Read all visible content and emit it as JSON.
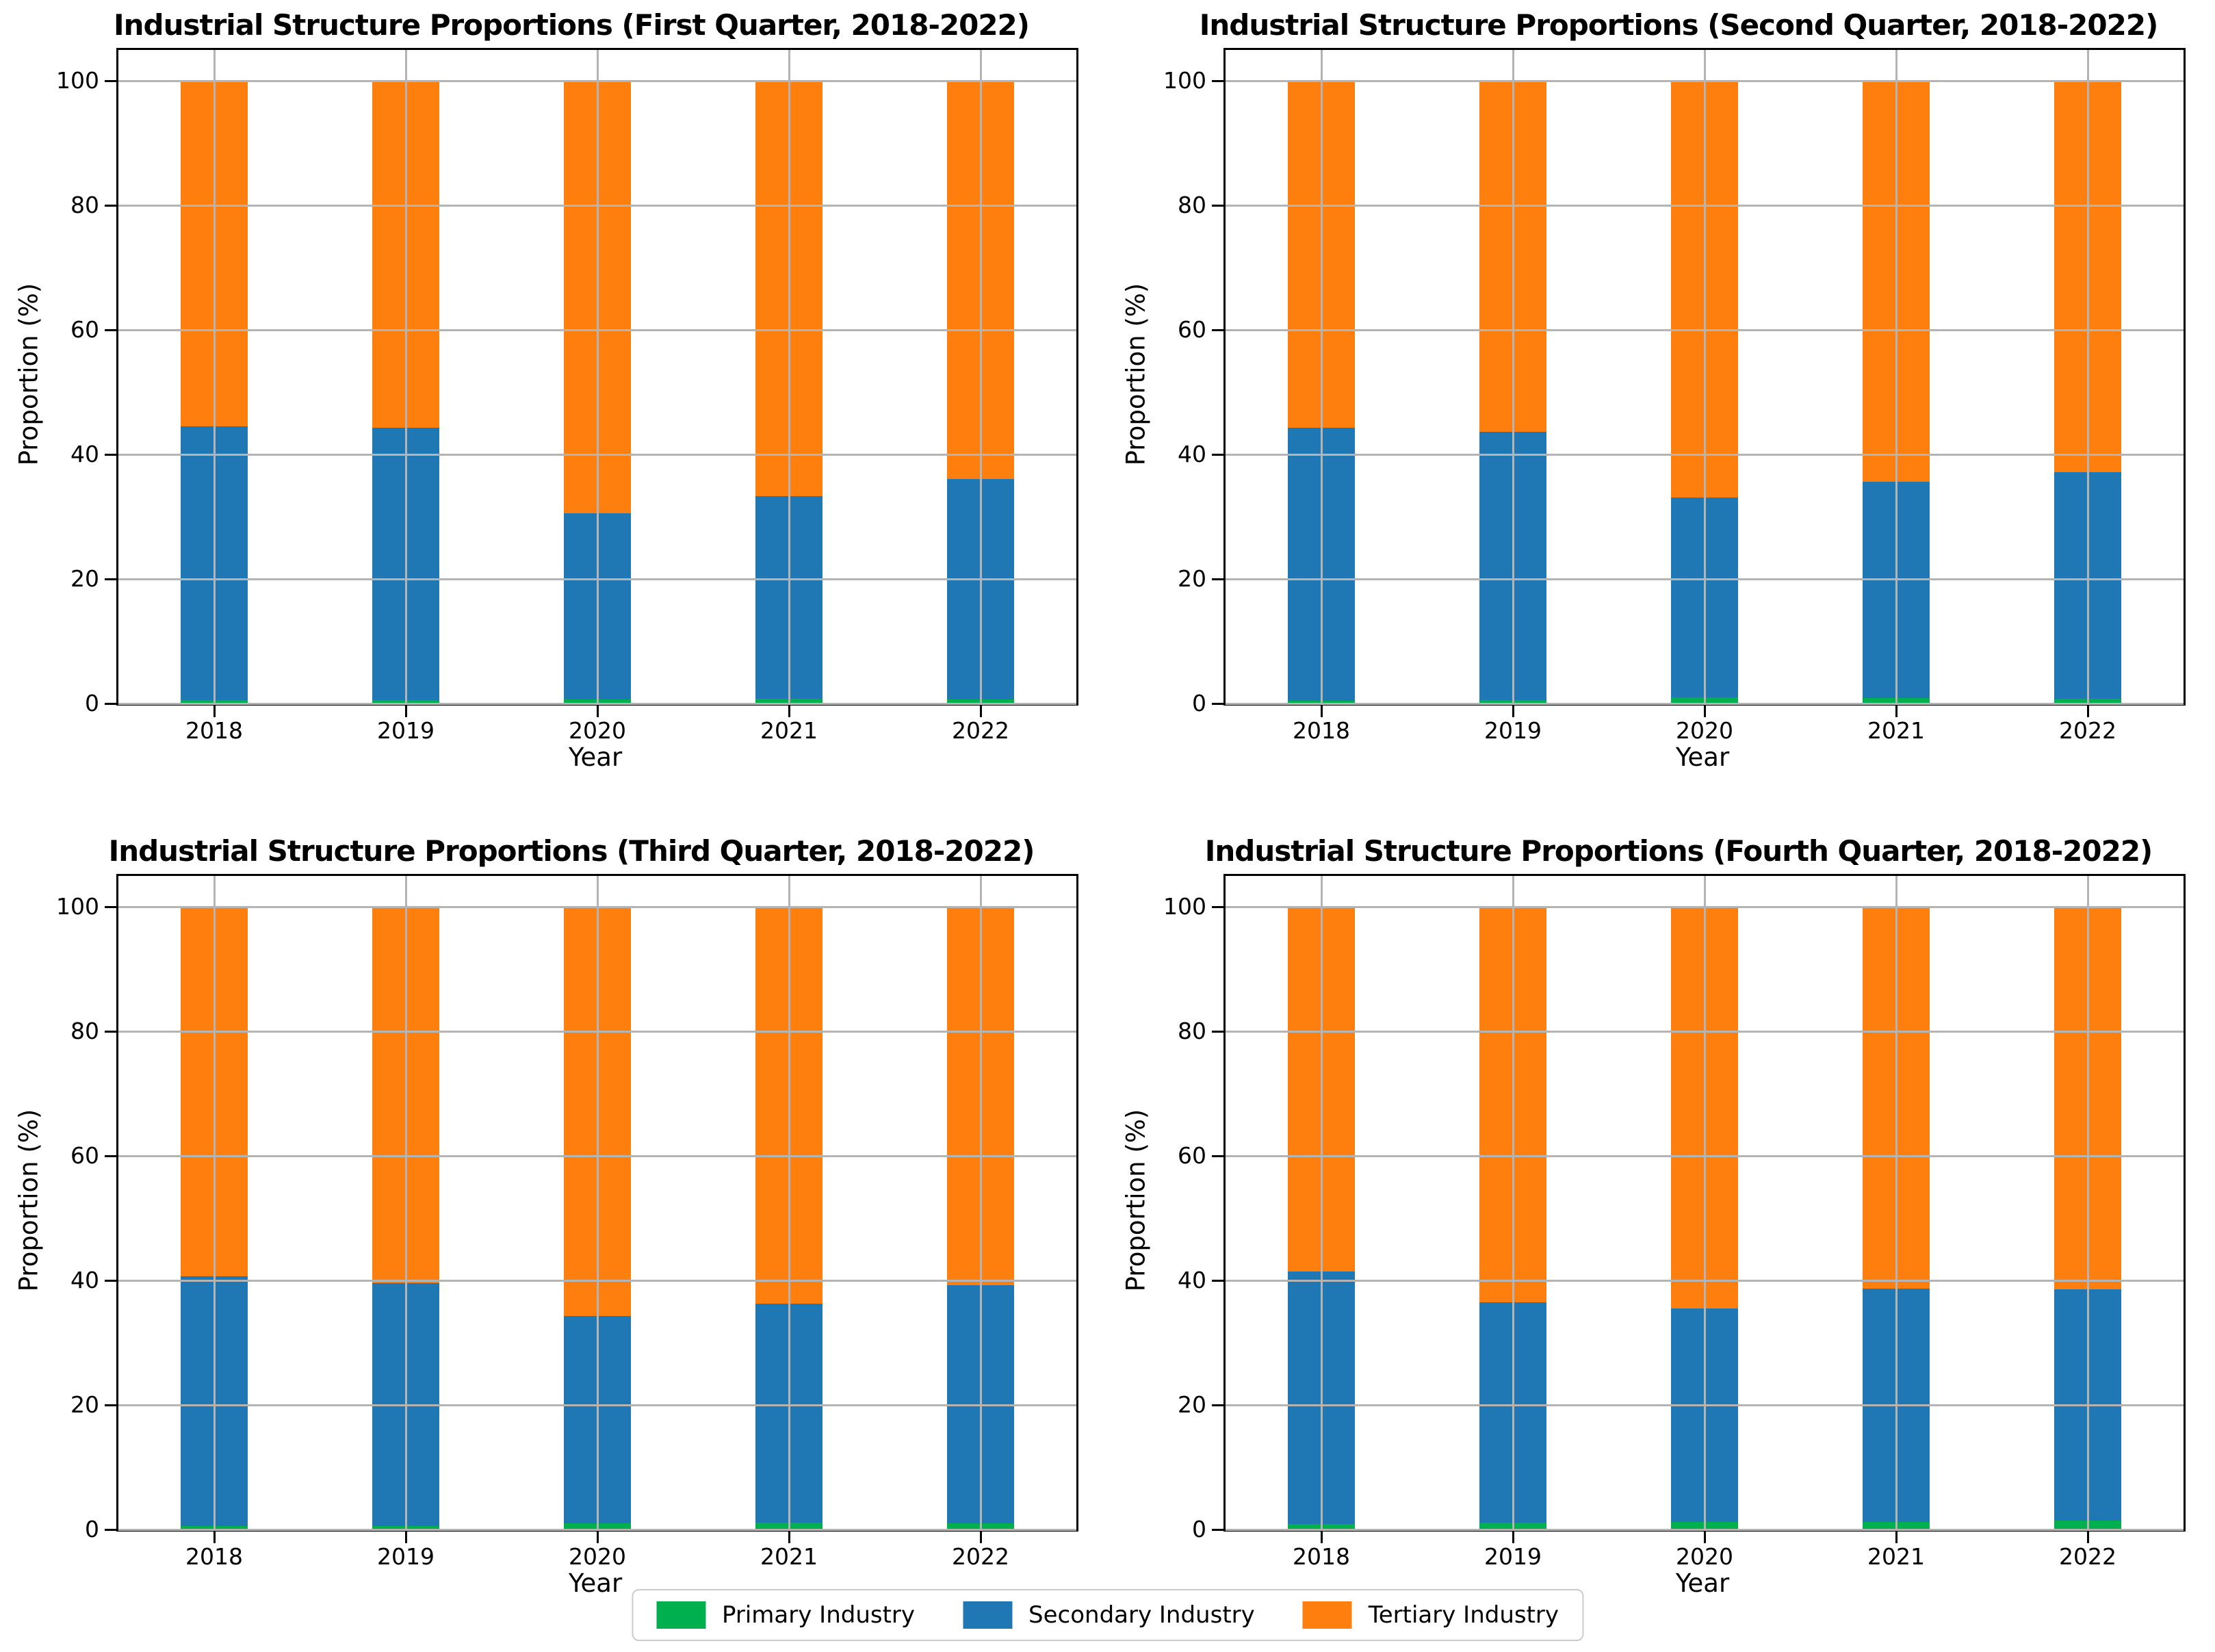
{
  "figure": {
    "background": "#ffffff"
  },
  "colors": {
    "primary": "#00b04f",
    "secondary": "#1f77b4",
    "tertiary": "#ff7f0e",
    "grid": "#b4b4b4",
    "spine": "#000000"
  },
  "axis": {
    "yticks": [
      0,
      20,
      40,
      60,
      80,
      100
    ],
    "xlabel": "Year",
    "ylabel": "Proportion (%)"
  },
  "legend": {
    "position": "bottom center",
    "entries": [
      {
        "label": "Primary Industry",
        "color_key": "primary"
      },
      {
        "label": "Secondary Industry",
        "color_key": "secondary"
      },
      {
        "label": "Tertiary Industry",
        "color_key": "tertiary"
      }
    ]
  },
  "chart_data": [
    {
      "type": "bar",
      "stacked": true,
      "title": "Industrial Structure Proportions (First Quarter, 2018-2022)",
      "xlabel": "Year",
      "ylabel": "Proportion (%)",
      "ylim": [
        0,
        100
      ],
      "grid": true,
      "categories": [
        "2018",
        "2019",
        "2020",
        "2021",
        "2022"
      ],
      "series": [
        {
          "name": "Primary Industry",
          "values": [
            0.5,
            0.5,
            0.7,
            0.8,
            0.7
          ]
        },
        {
          "name": "Secondary Industry",
          "values": [
            44.0,
            43.8,
            29.9,
            32.5,
            35.4
          ]
        },
        {
          "name": "Tertiary Industry",
          "values": [
            55.5,
            55.7,
            69.4,
            66.7,
            63.9
          ]
        }
      ]
    },
    {
      "type": "bar",
      "stacked": true,
      "title": "Industrial Structure Proportions (Second Quarter, 2018-2022)",
      "xlabel": "Year",
      "ylabel": "Proportion (%)",
      "ylim": [
        0,
        100
      ],
      "grid": true,
      "categories": [
        "2018",
        "2019",
        "2020",
        "2021",
        "2022"
      ],
      "series": [
        {
          "name": "Primary Industry",
          "values": [
            0.4,
            0.5,
            1.0,
            0.9,
            0.8
          ]
        },
        {
          "name": "Secondary Industry",
          "values": [
            43.9,
            43.2,
            32.1,
            34.7,
            36.4
          ]
        },
        {
          "name": "Tertiary Industry",
          "values": [
            55.7,
            56.3,
            66.9,
            64.4,
            62.8
          ]
        }
      ]
    },
    {
      "type": "bar",
      "stacked": true,
      "title": "Industrial Structure Proportions (Third Quarter, 2018-2022)",
      "xlabel": "Year",
      "ylabel": "Proportion (%)",
      "ylim": [
        0,
        100
      ],
      "grid": true,
      "categories": [
        "2018",
        "2019",
        "2020",
        "2021",
        "2022"
      ],
      "series": [
        {
          "name": "Primary Industry",
          "values": [
            0.6,
            0.6,
            1.0,
            1.1,
            1.0
          ]
        },
        {
          "name": "Secondary Industry",
          "values": [
            40.1,
            39.0,
            33.3,
            35.2,
            38.3
          ]
        },
        {
          "name": "Tertiary Industry",
          "values": [
            59.3,
            60.4,
            65.7,
            63.7,
            60.7
          ]
        }
      ]
    },
    {
      "type": "bar",
      "stacked": true,
      "title": "Industrial Structure Proportions (Fourth Quarter, 2018-2022)",
      "xlabel": "Year",
      "ylabel": "Proportion (%)",
      "ylim": [
        0,
        100
      ],
      "grid": true,
      "categories": [
        "2018",
        "2019",
        "2020",
        "2021",
        "2022"
      ],
      "series": [
        {
          "name": "Primary Industry",
          "values": [
            0.9,
            1.1,
            1.2,
            1.2,
            1.4
          ]
        },
        {
          "name": "Secondary Industry",
          "values": [
            40.5,
            35.4,
            34.3,
            37.5,
            37.2
          ]
        },
        {
          "name": "Tertiary Industry",
          "values": [
            58.6,
            63.5,
            64.5,
            61.3,
            61.4
          ]
        }
      ]
    }
  ]
}
